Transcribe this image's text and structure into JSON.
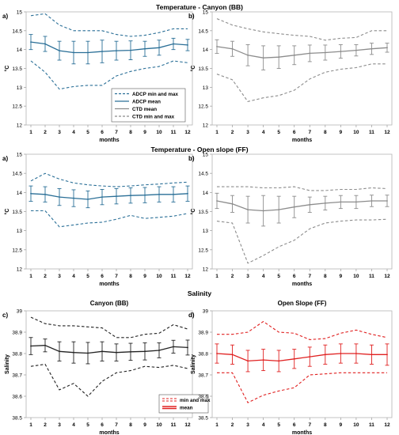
{
  "figure": {
    "section_titles": [
      "Temperature - Canyon (BB)",
      "Temperature - Open slope (FF)",
      "Salinity"
    ]
  },
  "chart_data": [
    {
      "id": "temp-canyon-adcp",
      "type": "line",
      "panel_label": "a)",
      "xlabel": "months",
      "ylabel": "°C",
      "ylim": [
        12,
        15
      ],
      "yticks": [
        "12",
        "12.5",
        "13",
        "13.5",
        "14",
        "14.5",
        "15"
      ],
      "categories": [
        "1",
        "2",
        "3",
        "4",
        "5",
        "6",
        "7",
        "8",
        "9",
        "10",
        "11",
        "12"
      ],
      "color": "#2a6f97",
      "series": [
        {
          "name": "ADCP mean",
          "style": "solid",
          "values": [
            14.2,
            14.15,
            13.97,
            13.92,
            13.92,
            13.95,
            13.97,
            13.98,
            14.02,
            14.05,
            14.15,
            14.12
          ],
          "errors": [
            0.2,
            0.2,
            0.25,
            0.3,
            0.3,
            0.3,
            0.25,
            0.25,
            0.2,
            0.2,
            0.15,
            0.15
          ]
        },
        {
          "name": "ADCP min and max",
          "style": "dashed",
          "values": [
            14.9,
            14.95,
            14.65,
            14.5,
            14.5,
            14.5,
            14.4,
            14.35,
            14.38,
            14.45,
            14.55,
            14.55
          ]
        },
        {
          "name": "ADCP min and max",
          "style": "dashed",
          "values": [
            13.7,
            13.4,
            12.95,
            13.02,
            13.05,
            13.05,
            13.3,
            13.42,
            13.5,
            13.55,
            13.7,
            13.65
          ]
        }
      ],
      "legend": {
        "position": "bottom-right",
        "entries": [
          {
            "label": "ADCP min and max",
            "color": "#2a6f97",
            "style": "dashed"
          },
          {
            "label": "ADCP mean",
            "color": "#2a6f97",
            "style": "solid"
          },
          {
            "label": "CTD mean",
            "color": "#8c8c8c",
            "style": "solid"
          },
          {
            "label": "CTD min and max",
            "color": "#8c8c8c",
            "style": "dashed"
          }
        ]
      }
    },
    {
      "id": "temp-canyon-ctd",
      "type": "line",
      "panel_label": "b)",
      "xlabel": "months",
      "ylabel": "°C",
      "ylim": [
        12,
        15
      ],
      "yticks": [
        "12",
        "12.5",
        "13",
        "13.5",
        "14",
        "14.5",
        "15"
      ],
      "categories": [
        "1",
        "2",
        "3",
        "4",
        "5",
        "6",
        "7",
        "8",
        "9",
        "10",
        "11",
        "12"
      ],
      "color": "#8c8c8c",
      "series": [
        {
          "name": "CTD mean",
          "style": "solid",
          "values": [
            14.08,
            14.02,
            13.85,
            13.78,
            13.8,
            13.85,
            13.9,
            13.92,
            13.95,
            13.98,
            14.02,
            14.05
          ],
          "errors": [
            0.18,
            0.2,
            0.28,
            0.32,
            0.3,
            0.25,
            0.22,
            0.2,
            0.18,
            0.15,
            0.15,
            0.12
          ]
        },
        {
          "name": "CTD min and max",
          "style": "dashed",
          "values": [
            14.82,
            14.65,
            14.55,
            14.47,
            14.42,
            14.38,
            14.35,
            14.25,
            14.3,
            14.32,
            14.5,
            14.5
          ]
        },
        {
          "name": "CTD min and max",
          "style": "dashed",
          "values": [
            13.35,
            13.2,
            12.62,
            12.72,
            12.78,
            12.92,
            13.22,
            13.4,
            13.48,
            13.52,
            13.62,
            13.62
          ]
        }
      ]
    },
    {
      "id": "temp-slope-adcp",
      "type": "line",
      "panel_label": "a)",
      "xlabel": "months",
      "ylabel": "°C",
      "ylim": [
        12,
        15
      ],
      "yticks": [
        "12",
        "12.5",
        "13",
        "13.5",
        "14",
        "14.5",
        "15"
      ],
      "categories": [
        "1",
        "2",
        "3",
        "4",
        "5",
        "6",
        "7",
        "8",
        "9",
        "10",
        "11",
        "12"
      ],
      "color": "#2a6f97",
      "series": [
        {
          "name": "ADCP mean",
          "style": "solid",
          "values": [
            13.97,
            13.95,
            13.88,
            13.85,
            13.82,
            13.88,
            13.9,
            13.92,
            13.93,
            13.95,
            13.95,
            13.97
          ],
          "errors": [
            0.2,
            0.2,
            0.22,
            0.22,
            0.22,
            0.2,
            0.2,
            0.2,
            0.2,
            0.2,
            0.2,
            0.2
          ]
        },
        {
          "name": "ADCP min and max",
          "style": "dashed",
          "values": [
            14.3,
            14.5,
            14.35,
            14.25,
            14.2,
            14.17,
            14.15,
            14.17,
            14.2,
            14.22,
            14.25,
            14.27
          ]
        },
        {
          "name": "ADCP min and max",
          "style": "dashed",
          "values": [
            13.52,
            13.52,
            13.1,
            13.15,
            13.2,
            13.22,
            13.3,
            13.4,
            13.32,
            13.35,
            13.38,
            13.45
          ]
        }
      ]
    },
    {
      "id": "temp-slope-ctd",
      "type": "line",
      "panel_label": "b)",
      "xlabel": "months",
      "ylabel": "°C",
      "ylim": [
        12,
        15
      ],
      "yticks": [
        "12",
        "12.5",
        "13",
        "13.5",
        "14",
        "14.5",
        "15"
      ],
      "categories": [
        "1",
        "2",
        "3",
        "4",
        "5",
        "6",
        "7",
        "8",
        "9",
        "10",
        "11",
        "12"
      ],
      "color": "#8c8c8c",
      "series": [
        {
          "name": "CTD mean",
          "style": "solid",
          "values": [
            13.78,
            13.7,
            13.55,
            13.52,
            13.55,
            13.62,
            13.68,
            13.72,
            13.75,
            13.75,
            13.78,
            13.78
          ],
          "errors": [
            0.2,
            0.22,
            0.35,
            0.4,
            0.35,
            0.28,
            0.2,
            0.18,
            0.17,
            0.17,
            0.15,
            0.15
          ]
        },
        {
          "name": "CTD min and max",
          "style": "dashed",
          "values": [
            14.15,
            14.15,
            14.15,
            14.12,
            14.12,
            14.15,
            14.05,
            14.05,
            14.08,
            14.08,
            14.12,
            14.1
          ]
        },
        {
          "name": "CTD min and max",
          "style": "dashed",
          "values": [
            13.25,
            13.2,
            12.15,
            12.35,
            12.58,
            12.75,
            13.05,
            13.2,
            13.25,
            13.28,
            13.28,
            13.3
          ]
        }
      ]
    },
    {
      "id": "salinity-canyon",
      "type": "line",
      "panel_label": "c)",
      "title": "Canyon (BB)",
      "xlabel": "months",
      "ylabel": "Salinity",
      "ylim": [
        38.5,
        39
      ],
      "yticks": [
        "38.5",
        "38.6",
        "38.7",
        "38.8",
        "38.9",
        "39"
      ],
      "categories": [
        "1",
        "2",
        "3",
        "4",
        "5",
        "6",
        "7",
        "8",
        "9",
        "10",
        "11",
        "12"
      ],
      "color": "#222222",
      "series": [
        {
          "name": "mean",
          "style": "solid",
          "values": [
            38.835,
            38.838,
            38.81,
            38.805,
            38.802,
            38.81,
            38.805,
            38.808,
            38.81,
            38.815,
            38.832,
            38.828
          ],
          "errors": [
            0.04,
            0.03,
            0.045,
            0.05,
            0.05,
            0.045,
            0.04,
            0.04,
            0.04,
            0.035,
            0.03,
            0.035
          ]
        },
        {
          "name": "min and max",
          "style": "dashed",
          "values": [
            38.97,
            38.94,
            38.93,
            38.93,
            38.925,
            38.92,
            38.875,
            38.875,
            38.89,
            38.895,
            38.935,
            38.915
          ]
        },
        {
          "name": "min and max",
          "style": "dashed",
          "values": [
            38.74,
            38.75,
            38.63,
            38.66,
            38.6,
            38.67,
            38.71,
            38.72,
            38.74,
            38.735,
            38.745,
            38.73
          ]
        }
      ],
      "legend": {
        "position": "bottom-right",
        "entries": [
          {
            "label": "min and max",
            "color": "#e02020",
            "style": "dashed"
          },
          {
            "label": "mean",
            "color": "#e02020",
            "style": "solid"
          }
        ]
      }
    },
    {
      "id": "salinity-slope",
      "type": "line",
      "panel_label": "d)",
      "title": "Open Slope (FF)",
      "xlabel": "months",
      "ylabel": "Salinity",
      "ylim": [
        38.5,
        39
      ],
      "yticks": [
        "38.5",
        "38.6",
        "38.7",
        "38.8",
        "38.9",
        "39"
      ],
      "categories": [
        "1",
        "2",
        "3",
        "4",
        "5",
        "6",
        "7",
        "8",
        "9",
        "10",
        "11",
        "12"
      ],
      "color": "#e02020",
      "series": [
        {
          "name": "mean",
          "style": "solid",
          "values": [
            38.8,
            38.795,
            38.765,
            38.77,
            38.765,
            38.775,
            38.785,
            38.795,
            38.8,
            38.8,
            38.795,
            38.795
          ],
          "errors": [
            0.045,
            0.045,
            0.05,
            0.05,
            0.05,
            0.045,
            0.045,
            0.045,
            0.045,
            0.045,
            0.045,
            0.05
          ]
        },
        {
          "name": "min and max",
          "style": "dashed",
          "values": [
            38.89,
            38.89,
            38.9,
            38.95,
            38.9,
            38.895,
            38.865,
            38.87,
            38.895,
            38.91,
            38.89,
            38.875
          ]
        },
        {
          "name": "min and max",
          "style": "dashed",
          "values": [
            38.71,
            38.71,
            38.57,
            38.605,
            38.625,
            38.64,
            38.7,
            38.705,
            38.71,
            38.71,
            38.71,
            38.71
          ]
        }
      ]
    }
  ]
}
